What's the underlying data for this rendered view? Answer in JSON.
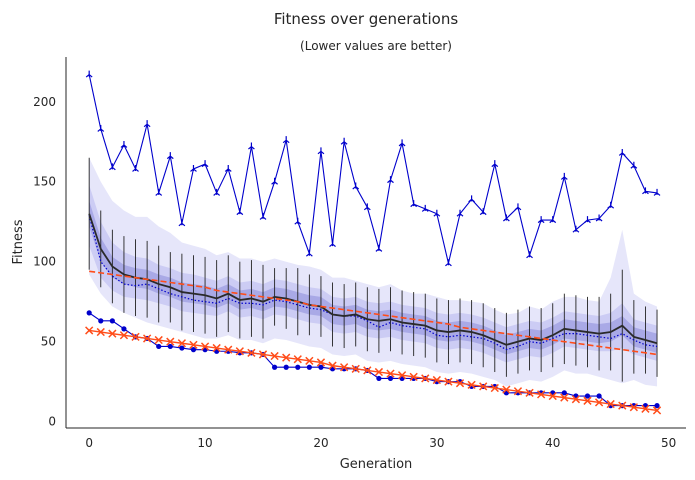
{
  "chart_data": {
    "type": "line",
    "title": "Fitness over generations",
    "subtitle": "(Lower values are better)",
    "xlabel": "Generation",
    "ylabel": "Fitness",
    "xlim": [
      -2,
      51.5
    ],
    "ylim": [
      -4,
      228
    ],
    "xticks": [
      0,
      10,
      20,
      30,
      40,
      50
    ],
    "yticks": [
      0,
      50,
      100,
      150,
      200
    ],
    "grid": false,
    "colors": {
      "max": "#0000cc",
      "min": "#0000cc",
      "mean": "#2a2a2a",
      "median": "#0000cc",
      "trend": "#ff4d1a",
      "band_outer": "#e6e6fa",
      "band_mid": "#ccccf4",
      "band_inner": "#a9a9e6",
      "errorbar": "#222222"
    },
    "x": [
      0,
      1,
      2,
      3,
      4,
      5,
      6,
      7,
      8,
      9,
      10,
      11,
      12,
      13,
      14,
      15,
      16,
      17,
      18,
      19,
      20,
      21,
      22,
      23,
      24,
      25,
      26,
      27,
      28,
      29,
      30,
      31,
      32,
      33,
      34,
      35,
      36,
      37,
      38,
      39,
      40,
      41,
      42,
      43,
      44,
      45,
      46,
      47,
      48,
      49
    ],
    "series": [
      {
        "key": "max",
        "values": [
          217,
          183,
          159,
          173,
          158,
          186,
          143,
          166,
          124,
          158,
          161,
          143,
          158,
          131,
          172,
          128,
          150,
          176,
          125,
          105,
          169,
          111,
          175,
          147,
          134,
          108,
          151,
          174,
          136,
          133,
          130,
          99,
          130,
          139,
          131,
          161,
          127,
          134,
          104,
          126,
          126,
          153,
          120,
          126,
          127,
          135,
          168,
          160,
          144,
          143
        ]
      },
      {
        "key": "mean",
        "values": [
          130,
          108,
          97,
          92,
          90,
          89,
          86,
          84,
          81,
          80,
          79,
          77,
          80,
          76,
          77,
          75,
          78,
          77,
          75,
          73,
          72,
          67,
          66,
          67,
          64,
          63,
          64,
          62,
          61,
          60,
          57,
          56,
          57,
          56,
          54,
          51,
          48,
          50,
          52,
          51,
          54,
          58,
          57,
          56,
          55,
          56,
          60,
          53,
          51,
          49
        ]
      },
      {
        "key": "median",
        "values": [
          129,
          100,
          91,
          86,
          85,
          86,
          83,
          80,
          78,
          76,
          75,
          74,
          77,
          74,
          74,
          73,
          76,
          75,
          73,
          71,
          70,
          67,
          66,
          66,
          63,
          59,
          62,
          60,
          59,
          58,
          54,
          53,
          54,
          53,
          52,
          49,
          45,
          47,
          50,
          49,
          52,
          55,
          55,
          54,
          53,
          52,
          55,
          51,
          48,
          47
        ]
      },
      {
        "key": "min",
        "values": [
          68,
          63,
          63,
          58,
          53,
          52,
          47,
          47,
          46,
          45,
          45,
          44,
          44,
          43,
          43,
          42,
          34,
          34,
          34,
          34,
          34,
          33,
          33,
          33,
          32,
          27,
          27,
          27,
          27,
          27,
          25,
          25,
          25,
          22,
          22,
          22,
          18,
          18,
          18,
          18,
          18,
          18,
          16,
          16,
          16,
          10,
          10,
          10,
          10,
          10
        ]
      },
      {
        "key": "trend_upper",
        "values": [
          94,
          93,
          92,
          91,
          90,
          89,
          88,
          87,
          86,
          85,
          84,
          82,
          81,
          80,
          79,
          78,
          77,
          76,
          75,
          73,
          72,
          71,
          70,
          69,
          68,
          67,
          66,
          65,
          64,
          63,
          62,
          61,
          59,
          58,
          57,
          56,
          55,
          54,
          53,
          52,
          51,
          50,
          49,
          48,
          47,
          46,
          45,
          44,
          43,
          42
        ]
      },
      {
        "key": "trend_lower",
        "values": [
          57,
          56,
          55,
          54,
          53,
          52,
          51,
          50,
          49,
          48,
          47,
          46,
          45,
          44,
          43,
          42,
          41,
          40,
          39,
          38,
          37,
          35,
          34,
          33,
          32,
          31,
          30,
          29,
          28,
          27,
          26,
          25,
          24,
          23,
          22,
          21,
          20,
          19,
          18,
          17,
          16,
          15,
          14,
          13,
          12,
          11,
          10,
          9,
          8,
          7
        ]
      },
      {
        "key": "band_outer_upper",
        "values": [
          165,
          150,
          138,
          132,
          128,
          128,
          122,
          118,
          112,
          110,
          108,
          104,
          106,
          102,
          102,
          100,
          102,
          100,
          98,
          97,
          95,
          90,
          90,
          88,
          86,
          84,
          86,
          82,
          80,
          80,
          78,
          76,
          76,
          75,
          74,
          70,
          67,
          68,
          72,
          70,
          75,
          78,
          78,
          76,
          75,
          90,
          120,
          80,
          75,
          72
        ]
      },
      {
        "key": "band_outer_lower",
        "values": [
          92,
          80,
          72,
          68,
          65,
          62,
          60,
          58,
          56,
          54,
          52,
          52,
          54,
          51,
          51,
          49,
          52,
          51,
          49,
          47,
          46,
          42,
          41,
          42,
          38,
          37,
          38,
          36,
          35,
          34,
          31,
          30,
          31,
          30,
          28,
          26,
          22,
          24,
          26,
          25,
          28,
          32,
          30,
          30,
          28,
          26,
          24,
          26,
          23,
          22
        ]
      },
      {
        "key": "band_mid_upper",
        "values": [
          148,
          125,
          112,
          106,
          103,
          102,
          98,
          96,
          93,
          92,
          90,
          88,
          91,
          87,
          88,
          86,
          89,
          88,
          86,
          84,
          83,
          78,
          77,
          78,
          75,
          74,
          75,
          73,
          72,
          71,
          68,
          67,
          68,
          67,
          65,
          62,
          59,
          61,
          63,
          62,
          65,
          69,
          68,
          67,
          66,
          68,
          74,
          64,
          62,
          60
        ]
      },
      {
        "key": "band_mid_lower",
        "values": [
          110,
          90,
          82,
          78,
          77,
          76,
          74,
          72,
          69,
          68,
          67,
          66,
          69,
          65,
          66,
          64,
          67,
          66,
          64,
          62,
          61,
          56,
          55,
          56,
          53,
          52,
          53,
          51,
          50,
          49,
          46,
          45,
          46,
          45,
          43,
          40,
          37,
          39,
          41,
          40,
          43,
          47,
          46,
          45,
          44,
          44,
          46,
          42,
          40,
          38
        ]
      },
      {
        "key": "band_inner_upper",
        "values": [
          138,
          115,
          103,
          98,
          96,
          95,
          92,
          90,
          87,
          86,
          85,
          83,
          86,
          82,
          83,
          81,
          84,
          83,
          81,
          79,
          78,
          73,
          72,
          73,
          70,
          69,
          70,
          68,
          67,
          66,
          63,
          62,
          63,
          62,
          60,
          57,
          54,
          56,
          58,
          57,
          60,
          64,
          63,
          62,
          61,
          62,
          66,
          59,
          57,
          55
        ]
      },
      {
        "key": "band_inner_lower",
        "values": [
          122,
          100,
          90,
          86,
          84,
          83,
          80,
          78,
          75,
          74,
          73,
          71,
          74,
          70,
          71,
          69,
          72,
          71,
          69,
          67,
          66,
          61,
          60,
          61,
          58,
          57,
          58,
          56,
          55,
          54,
          51,
          50,
          51,
          50,
          48,
          45,
          42,
          44,
          46,
          45,
          48,
          52,
          51,
          50,
          49,
          50,
          54,
          47,
          45,
          43
        ]
      },
      {
        "key": "errorbar_upper",
        "values": [
          165,
          132,
          120,
          116,
          114,
          113,
          110,
          106,
          105,
          104,
          103,
          101,
          104,
          100,
          101,
          98,
          96,
          96,
          96,
          92,
          91,
          87,
          86,
          87,
          84,
          83,
          84,
          82,
          81,
          80,
          77,
          76,
          77,
          76,
          74,
          71,
          68,
          70,
          72,
          71,
          74,
          80,
          79,
          78,
          78,
          80,
          95,
          76,
          72,
          70
        ]
      },
      {
        "key": "errorbar_lower",
        "values": [
          95,
          84,
          74,
          68,
          66,
          65,
          62,
          62,
          57,
          56,
          55,
          53,
          56,
          52,
          53,
          52,
          60,
          58,
          54,
          54,
          53,
          47,
          46,
          47,
          44,
          43,
          44,
          42,
          41,
          40,
          37,
          36,
          37,
          36,
          34,
          31,
          28,
          30,
          32,
          31,
          34,
          36,
          35,
          34,
          32,
          32,
          25,
          30,
          30,
          28
        ]
      }
    ]
  }
}
